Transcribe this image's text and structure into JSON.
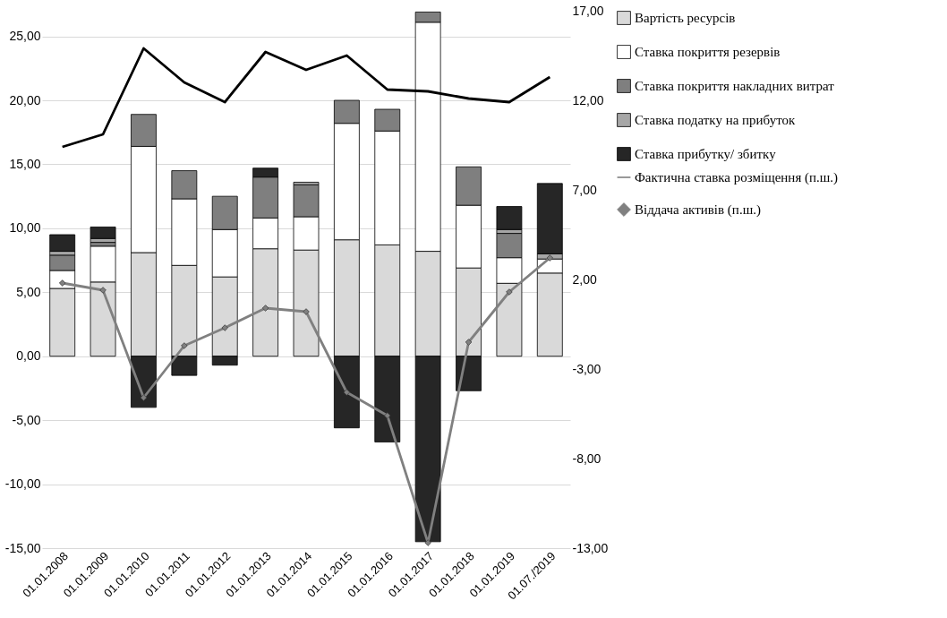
{
  "chart_data": {
    "type": "bar",
    "stacked": true,
    "categories": [
      "01.01.2008",
      "01.01.2009",
      "01.01.2010",
      "01.01.2011",
      "01.01.2012",
      "01.01.2013",
      "01.01.2014",
      "01.01.2015",
      "01.01.2016",
      "01.01.2017",
      "01.01.2018",
      "01.01.2019",
      "01.07./2019"
    ],
    "series": [
      {
        "name": "Вартість ресурсів",
        "color": "#d9d9d9",
        "values": [
          5.3,
          5.8,
          8.1,
          7.1,
          6.2,
          8.4,
          8.3,
          9.1,
          8.7,
          8.2,
          6.9,
          5.7,
          6.5
        ]
      },
      {
        "name": "Ставка покриття резервів",
        "color": "#ffffff",
        "values": [
          1.4,
          2.8,
          8.3,
          5.2,
          3.7,
          2.4,
          2.6,
          9.1,
          8.9,
          17.9,
          4.9,
          2.0,
          1.1
        ]
      },
      {
        "name": "Ставка покриття накладних витрат",
        "color": "#7f7f7f",
        "values": [
          1.2,
          0.3,
          2.5,
          2.2,
          2.6,
          3.2,
          2.5,
          1.8,
          1.7,
          0.8,
          3.0,
          1.9,
          0
        ]
      },
      {
        "name": "Ставка податку на прибуток",
        "color": "#a6a6a6",
        "values": [
          0.3,
          0.3,
          0,
          0,
          0,
          0,
          0.2,
          0,
          0,
          0,
          0,
          0.3,
          0.4
        ]
      },
      {
        "name": "Ставка прибутку/ збитку",
        "color": "#262626",
        "values": [
          1.3,
          0.9,
          -4.0,
          -1.5,
          -0.7,
          0.7,
          0,
          -5.6,
          -6.7,
          -14.5,
          -2.7,
          1.8,
          5.5
        ]
      },
      {
        "name": "Фактична ставка розміщення (п.ш.)",
        "type": "line",
        "axis": "y2",
        "color": "#000000",
        "values": [
          9.4,
          10.1,
          14.9,
          13.0,
          11.9,
          14.7,
          13.7,
          14.5,
          12.6,
          12.5,
          12.1,
          11.9,
          13.3
        ]
      },
      {
        "name": "Віддача активів (п.ш.)",
        "type": "line",
        "axis": "y2",
        "marker": "diamond",
        "color": "#808080",
        "values": [
          1.8,
          1.4,
          -4.6,
          -1.7,
          -0.7,
          0.4,
          0.2,
          -4.3,
          -5.6,
          -12.7,
          -1.5,
          1.3,
          3.2
        ]
      }
    ],
    "ylim": [
      -15,
      27
    ],
    "yticks": [
      {
        "value": -15,
        "label": "-15,00"
      },
      {
        "value": -10,
        "label": "-10,00"
      },
      {
        "value": -5,
        "label": "-5,00"
      },
      {
        "value": 0,
        "label": "0,00"
      },
      {
        "value": 5,
        "label": "5,00"
      },
      {
        "value": 10,
        "label": "10,00"
      },
      {
        "value": 15,
        "label": "15,00"
      },
      {
        "value": 20,
        "label": "20,00"
      },
      {
        "value": 25,
        "label": "25,00"
      }
    ],
    "y2lim": [
      -13,
      17
    ],
    "y2ticks": [
      {
        "value": -13,
        "label": "-13,00"
      },
      {
        "value": -8,
        "label": "-8,00"
      },
      {
        "value": -3,
        "label": "-3,00"
      },
      {
        "value": 2,
        "label": "2,00"
      },
      {
        "value": 7,
        "label": "7,00"
      },
      {
        "value": 12,
        "label": "12,00"
      },
      {
        "value": 17,
        "label": "17,00"
      }
    ],
    "grid": "y",
    "legend": "right"
  }
}
